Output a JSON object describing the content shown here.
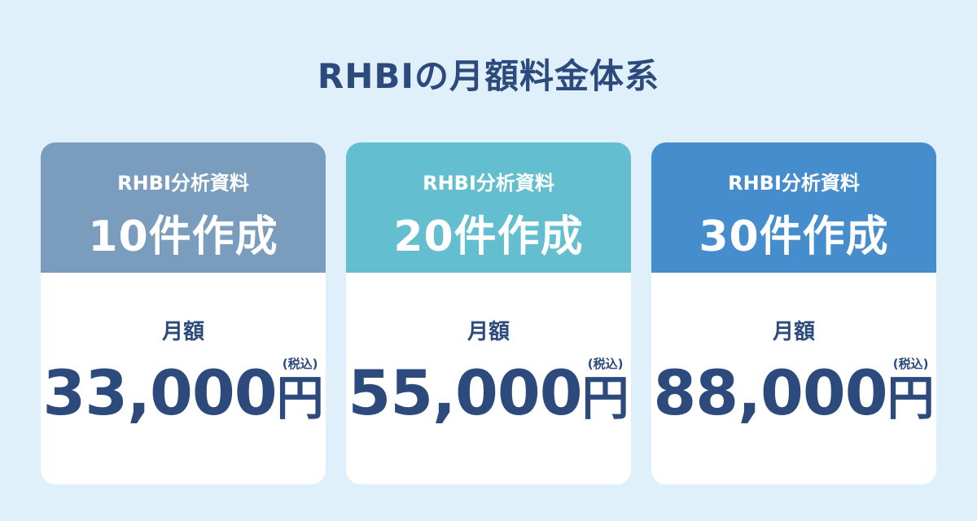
{
  "title": "RHBIの月額料金体系",
  "colors": {
    "background": "#dff0fb",
    "text": "#2c4a7c"
  },
  "plans": [
    {
      "subtitle": "RHBI分析資料",
      "count": "10件作成",
      "monthly_label": "月額",
      "price": "33,000",
      "currency": "円",
      "tax_note": "(税込)",
      "color": "#7a9dbe"
    },
    {
      "subtitle": "RHBI分析資料",
      "count": "20件作成",
      "monthly_label": "月額",
      "price": "55,000",
      "currency": "円",
      "tax_note": "(税込)",
      "color": "#63bfcf"
    },
    {
      "subtitle": "RHBI分析資料",
      "count": "30件作成",
      "monthly_label": "月額",
      "price": "88,000",
      "currency": "円",
      "tax_note": "(税込)",
      "color": "#468dcd"
    }
  ]
}
